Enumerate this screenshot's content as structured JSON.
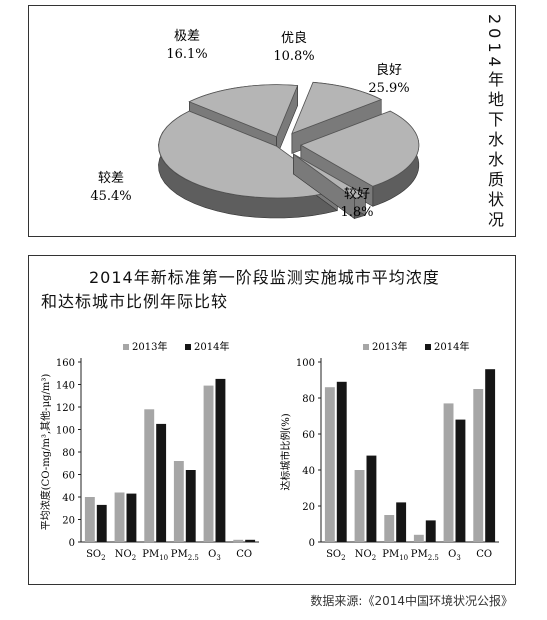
{
  "top_panel": {
    "title": "2014年地下水水质状况"
  },
  "bottom_panel": {
    "title_line1": "2014年新标准第一阶段监测实施城市平均浓度",
    "title_line2": "和达标城市比例年际比较"
  },
  "source": "数据来源:《2014中国环境状况公报》",
  "colors": {
    "series_2013": "#a6a6a6",
    "series_2014": "#151515",
    "pie_face": "#b5b5b5",
    "pie_side": "#5e5e5e"
  },
  "chart_data": [
    {
      "type": "pie",
      "title": "2014年地下水水质状况",
      "slices": [
        {
          "label": "优良",
          "value": 10.8,
          "value_text": "10.8%"
        },
        {
          "label": "良好",
          "value": 25.9,
          "value_text": "25.9%"
        },
        {
          "label": "较好",
          "value": 1.8,
          "value_text": "1.8%"
        },
        {
          "label": "较差",
          "value": 45.4,
          "value_text": "45.4%"
        },
        {
          "label": "极差",
          "value": 16.1,
          "value_text": "16.1%"
        }
      ]
    },
    {
      "type": "bar",
      "categories": [
        "SO2",
        "NO2",
        "PM10",
        "PM2.5",
        "O3",
        "CO"
      ],
      "category_labels": [
        {
          "base": "SO",
          "sub": "2"
        },
        {
          "base": "NO",
          "sub": "2"
        },
        {
          "base": "PM",
          "sub": "10"
        },
        {
          "base": "PM",
          "sub": "2.5"
        },
        {
          "base": "O",
          "sub": "3"
        },
        {
          "base": "CO",
          "sub": ""
        }
      ],
      "series": [
        {
          "name": "2013年",
          "values": [
            40,
            44,
            118,
            72,
            139,
            2
          ]
        },
        {
          "name": "2014年",
          "values": [
            33,
            43,
            105,
            64,
            145,
            2
          ]
        }
      ],
      "ylabel": "平均浓度(CO-mg/m³,其他-μg/m³)",
      "ylim": [
        0,
        160
      ],
      "yticks": [
        0,
        20,
        40,
        60,
        80,
        100,
        120,
        140,
        160
      ],
      "legend": "top"
    },
    {
      "type": "bar",
      "categories": [
        "SO2",
        "NO2",
        "PM10",
        "PM2.5",
        "O3",
        "CO"
      ],
      "category_labels": [
        {
          "base": "SO",
          "sub": "2"
        },
        {
          "base": "NO",
          "sub": "2"
        },
        {
          "base": "PM",
          "sub": "10"
        },
        {
          "base": "PM",
          "sub": "2.5"
        },
        {
          "base": "O",
          "sub": "3"
        },
        {
          "base": "CO",
          "sub": ""
        }
      ],
      "series": [
        {
          "name": "2013年",
          "values": [
            86,
            40,
            15,
            4,
            77,
            85
          ]
        },
        {
          "name": "2014年",
          "values": [
            89,
            48,
            22,
            12,
            68,
            96
          ]
        }
      ],
      "ylabel": "达标城市比例(%)",
      "ylim": [
        0,
        100
      ],
      "yticks": [
        0,
        20,
        40,
        60,
        80,
        100
      ],
      "legend": "top"
    }
  ]
}
